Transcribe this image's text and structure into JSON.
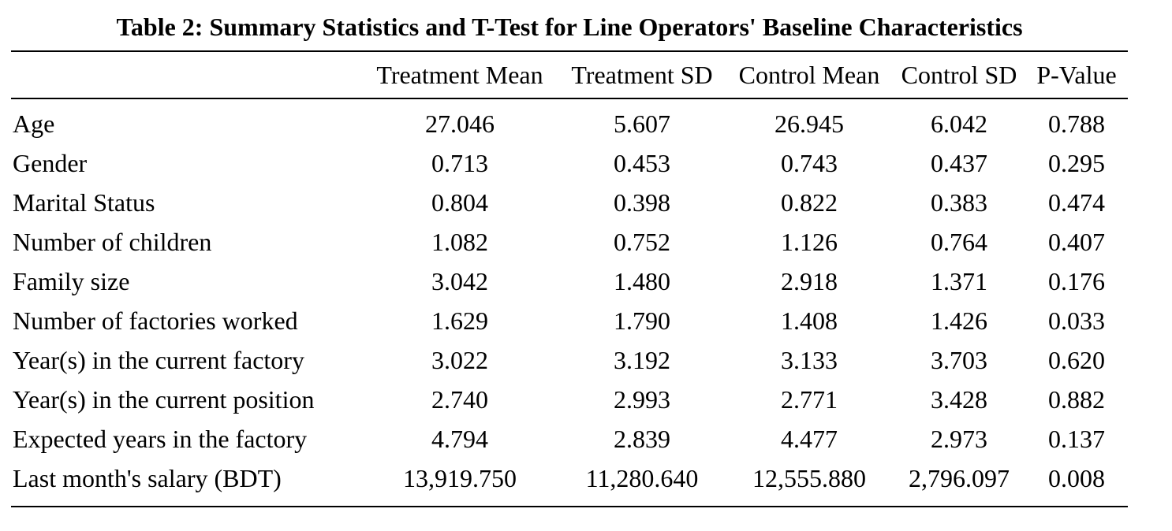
{
  "table": {
    "caption": "Table 2: Summary Statistics and T-Test for Line Operators' Baseline Characteristics",
    "columns": [
      "",
      "Treatment Mean",
      "Treatment SD",
      "Control Mean",
      "Control SD",
      "P-Value"
    ],
    "rows": [
      {
        "label": "Age",
        "values": [
          "27.046",
          "5.607",
          "26.945",
          "6.042",
          "0.788"
        ]
      },
      {
        "label": "Gender",
        "values": [
          "0.713",
          "0.453",
          "0.743",
          "0.437",
          "0.295"
        ]
      },
      {
        "label": "Marital Status",
        "values": [
          "0.804",
          "0.398",
          "0.822",
          "0.383",
          "0.474"
        ]
      },
      {
        "label": "Number of children",
        "values": [
          "1.082",
          "0.752",
          "1.126",
          "0.764",
          "0.407"
        ]
      },
      {
        "label": "Family size",
        "values": [
          "3.042",
          "1.480",
          "2.918",
          "1.371",
          "0.176"
        ]
      },
      {
        "label": "Number of factories worked",
        "values": [
          "1.629",
          "1.790",
          "1.408",
          "1.426",
          "0.033"
        ]
      },
      {
        "label": "Year(s) in the current factory",
        "values": [
          "3.022",
          "3.192",
          "3.133",
          "3.703",
          "0.620"
        ]
      },
      {
        "label": "Year(s) in the current position",
        "values": [
          "2.740",
          "2.993",
          "2.771",
          "3.428",
          "0.882"
        ]
      },
      {
        "label": "Expected years in the factory",
        "values": [
          "4.794",
          "2.839",
          "4.477",
          "2.973",
          "0.137"
        ]
      },
      {
        "label": "Last month's salary (BDT)",
        "values": [
          "13,919.750",
          "11,280.640",
          "12,555.880",
          "2,796.097",
          "0.008"
        ]
      }
    ]
  }
}
